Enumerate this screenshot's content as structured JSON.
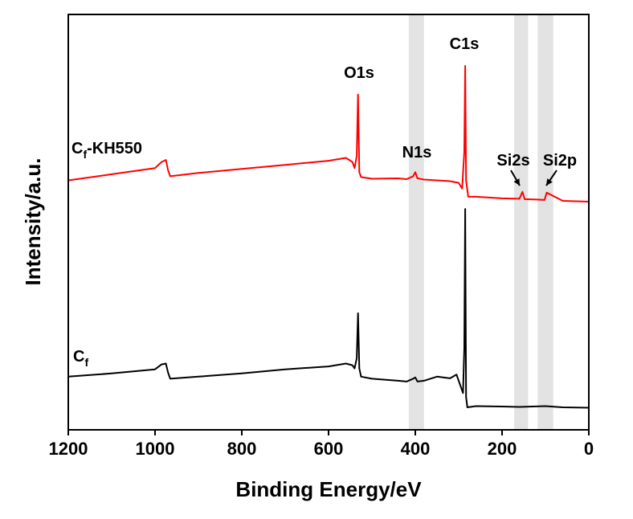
{
  "chart_data": {
    "type": "line",
    "xlabel": "Binding Energy/eV",
    "ylabel": "Intensity/a.u.",
    "xlim": [
      1200,
      0
    ],
    "x_reversed": true,
    "x_ticks": [
      "1200",
      "1000",
      "800",
      "600",
      "400",
      "200",
      "0"
    ],
    "y_ticks_shown": false,
    "grid": false,
    "highlight_bands_eV": [
      [
        415,
        380
      ],
      [
        172,
        140
      ],
      [
        118,
        82
      ]
    ],
    "highlight_color": "#e3e3e3",
    "peak_labels": [
      {
        "text": "O1s",
        "x": 532
      },
      {
        "text": "C1s",
        "x": 285
      },
      {
        "text": "N1s",
        "x": 400
      },
      {
        "text": "Si2s",
        "x": 153,
        "arrow": true
      },
      {
        "text": "Si2p",
        "x": 102,
        "arrow": true
      }
    ],
    "series": [
      {
        "name": "Cf-KH550",
        "label_main": "C",
        "label_sub": "f",
        "label_suffix": "-KH550",
        "color": "#ff0000",
        "x": [
          1200,
          1100,
          1000,
          985,
          975,
          970,
          965,
          900,
          800,
          700,
          600,
          560,
          545,
          540,
          535,
          532,
          529,
          525,
          500,
          440,
          420,
          405,
          400,
          395,
          380,
          350,
          320,
          300,
          292,
          287,
          285,
          283,
          278,
          260,
          200,
          160,
          153,
          148,
          120,
          102,
          97,
          60,
          0
        ],
        "y": [
          8.1,
          8.25,
          8.4,
          8.55,
          8.6,
          8.35,
          8.2,
          8.28,
          8.38,
          8.48,
          8.58,
          8.65,
          8.55,
          8.4,
          8.7,
          10.2,
          8.3,
          8.18,
          8.14,
          8.15,
          8.13,
          8.2,
          8.3,
          8.15,
          8.12,
          8.1,
          8.08,
          8.04,
          7.9,
          8.8,
          10.9,
          8.1,
          7.7,
          7.7,
          7.66,
          7.65,
          7.82,
          7.64,
          7.63,
          7.62,
          7.8,
          7.6,
          7.58
        ]
      },
      {
        "name": "Cf",
        "label_main": "C",
        "label_sub": "f",
        "label_suffix": "",
        "color": "#000000",
        "x": [
          1200,
          1100,
          1000,
          985,
          975,
          970,
          965,
          900,
          800,
          700,
          600,
          560,
          545,
          540,
          535,
          532,
          529,
          525,
          500,
          440,
          420,
          405,
          400,
          395,
          380,
          350,
          320,
          305,
          295,
          290,
          287,
          285,
          283,
          280,
          260,
          200,
          160,
          100,
          60,
          0
        ],
        "y": [
          3.3,
          3.38,
          3.48,
          3.6,
          3.62,
          3.4,
          3.25,
          3.3,
          3.38,
          3.48,
          3.55,
          3.62,
          3.58,
          3.5,
          3.75,
          4.85,
          3.5,
          3.3,
          3.25,
          3.2,
          3.18,
          3.25,
          3.28,
          3.18,
          3.2,
          3.3,
          3.26,
          3.35,
          3.05,
          2.9,
          4.0,
          7.4,
          2.8,
          2.55,
          2.58,
          2.57,
          2.56,
          2.58,
          2.55,
          2.54
        ]
      }
    ]
  }
}
